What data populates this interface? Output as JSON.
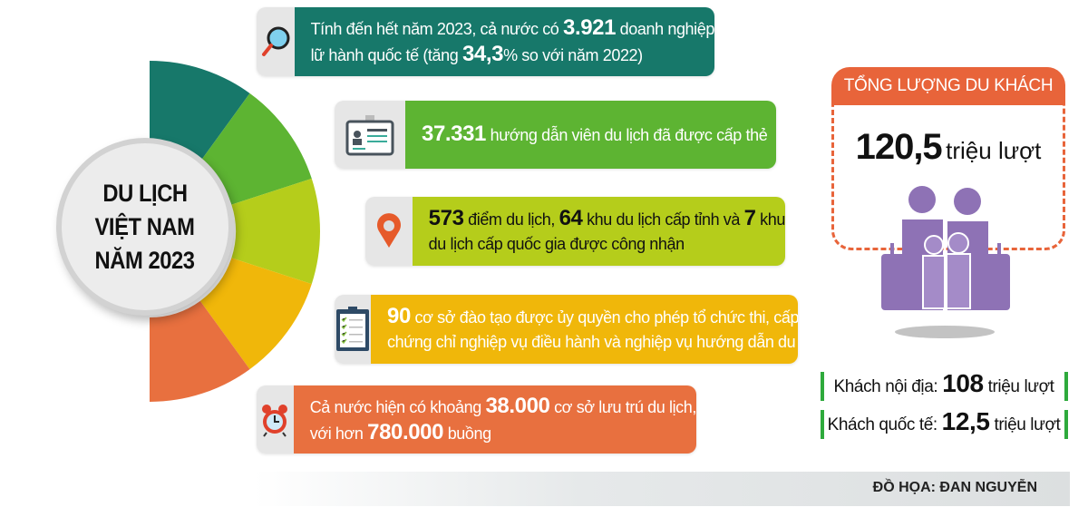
{
  "title": [
    "DU LỊCH",
    "VIỆT NAM",
    "NĂM 2023"
  ],
  "colors": {
    "teal": "#17786a",
    "green": "#5db432",
    "lime": "#b5cd1b",
    "yellow": "#f0b70a",
    "orange": "#e8703f",
    "purple": "#8e72b5",
    "accent": "#e8643a"
  },
  "cards": [
    {
      "icon": "magnifier-icon",
      "lines": [
        [
          {
            "t": "Tính đến hết năm 2023, cả nước có "
          },
          {
            "b": "3.921"
          },
          {
            "t": " doanh nghiệp"
          }
        ],
        [
          {
            "t": "lữ hành quốc tế (tăng "
          },
          {
            "b": "34,3"
          },
          {
            "t": "% so với năm 2022)"
          }
        ]
      ]
    },
    {
      "icon": "id-card-icon",
      "lines": [
        [
          {
            "b": "37.331"
          },
          {
            "t": " hướng dẫn viên du lịch đã được cấp thẻ"
          }
        ]
      ]
    },
    {
      "icon": "map-pin-icon",
      "lines": [
        [
          {
            "b": "573"
          },
          {
            "t": " điểm du lịch, "
          },
          {
            "b": "64"
          },
          {
            "t": " khu du lịch cấp tỉnh và "
          },
          {
            "b": "7"
          },
          {
            "t": " khu"
          }
        ],
        [
          {
            "t": "du lịch cấp quốc gia được công nhận"
          }
        ]
      ]
    },
    {
      "icon": "clipboard-checklist-icon",
      "lines": [
        [
          {
            "b": "90"
          },
          {
            "t": " cơ sở đào tạo được ủy quyền cho phép tổ chức thi, cấp"
          }
        ],
        [
          {
            "t": "chứng chỉ nghiệp vụ điều hành và nghiệp vụ hướng dẫn du lịch"
          }
        ]
      ]
    },
    {
      "icon": "alarm-clock-icon",
      "lines": [
        [
          {
            "t": "Cả nước hiện có khoảng "
          },
          {
            "b": "38.000"
          },
          {
            "t": " cơ sở lưu trú du lịch,"
          }
        ],
        [
          {
            "t": "với hơn "
          },
          {
            "b": "780.000"
          },
          {
            "t": " buồng"
          }
        ]
      ]
    }
  ],
  "visitors": {
    "header": "TỔNG LƯỢNG DU KHÁCH",
    "total_value": "120,5",
    "total_unit": "triệu lượt",
    "domestic_label": "Khách nội địa:",
    "domestic_value": "108",
    "domestic_unit": "triệu lượt",
    "intl_label": "Khách quốc tế:",
    "intl_value": "12,5",
    "intl_unit": "triệu lượt"
  },
  "credit": "ĐỒ HỌA: ĐAN NGUYỄN"
}
